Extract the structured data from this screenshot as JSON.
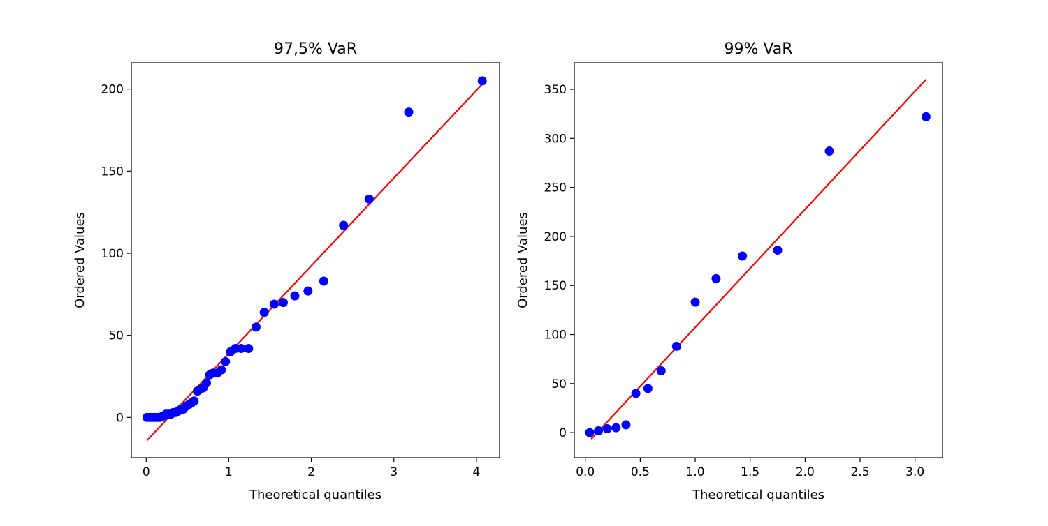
{
  "figure": {
    "background": "#ffffff"
  },
  "colors": {
    "points": "#0000ff",
    "fit_line": "#ff0000",
    "axes": "#000000"
  },
  "chart_data": [
    {
      "type": "scatter",
      "title": "97,5% VaR",
      "xlabel": "Theoretical quantiles",
      "ylabel": "Ordered Values",
      "xlim": [
        -0.18,
        4.28
      ],
      "ylim": [
        -24.5,
        216
      ],
      "xticks": [
        0,
        1,
        2,
        3,
        4
      ],
      "xtick_labels": [
        "0",
        "1",
        "2",
        "3",
        "4"
      ],
      "yticks": [
        0,
        50,
        100,
        150,
        200
      ],
      "ytick_labels": [
        "0",
        "50",
        "100",
        "150",
        "200"
      ],
      "grid": false,
      "legend": "none",
      "points": {
        "x": [
          0.01,
          0.04,
          0.07,
          0.1,
          0.13,
          0.16,
          0.19,
          0.21,
          0.24,
          0.27,
          0.3,
          0.33,
          0.36,
          0.39,
          0.42,
          0.45,
          0.49,
          0.52,
          0.55,
          0.58,
          0.62,
          0.65,
          0.69,
          0.73,
          0.77,
          0.81,
          0.86,
          0.91,
          0.96,
          1.02,
          1.08,
          1.15,
          1.24,
          1.33,
          1.43,
          1.55,
          1.66,
          1.8,
          1.96,
          2.15,
          2.39,
          2.7,
          3.18,
          4.07
        ],
        "y": [
          0,
          0,
          0,
          0,
          0,
          0,
          0.5,
          1,
          2,
          2,
          2,
          3,
          3,
          4,
          5,
          5,
          7,
          8,
          9,
          10,
          16,
          17,
          18,
          21,
          26,
          27,
          27,
          29,
          34,
          40,
          42,
          42,
          42,
          55,
          64,
          69,
          70,
          74,
          77,
          83,
          117,
          133,
          186,
          205
        ]
      },
      "fit_line": {
        "x": [
          0.01,
          4.07
        ],
        "y": [
          -14,
          203
        ]
      }
    },
    {
      "type": "scatter",
      "title": "99% VaR",
      "xlabel": "Theoretical quantiles",
      "ylabel": "Ordered Values",
      "xlim": [
        -0.1,
        3.25
      ],
      "ylim": [
        -25.5,
        377
      ],
      "xticks": [
        0.0,
        0.5,
        1.0,
        1.5,
        2.0,
        2.5,
        3.0
      ],
      "xtick_labels": [
        "0.0",
        "0.5",
        "1.0",
        "1.5",
        "2.0",
        "2.5",
        "3.0"
      ],
      "yticks": [
        0,
        50,
        100,
        150,
        200,
        250,
        300,
        350
      ],
      "ytick_labels": [
        "0",
        "50",
        "100",
        "150",
        "200",
        "250",
        "300",
        "350"
      ],
      "grid": false,
      "legend": "none",
      "points": {
        "x": [
          0.04,
          0.12,
          0.2,
          0.28,
          0.37,
          0.46,
          0.57,
          0.69,
          0.83,
          1.0,
          1.19,
          1.43,
          1.75,
          2.22,
          3.1
        ],
        "y": [
          0,
          2,
          4,
          5,
          8,
          40,
          45,
          63,
          88,
          133,
          157,
          180,
          186,
          287,
          322
        ]
      },
      "fit_line": {
        "x": [
          0.05,
          3.1
        ],
        "y": [
          -7,
          360
        ]
      }
    }
  ]
}
